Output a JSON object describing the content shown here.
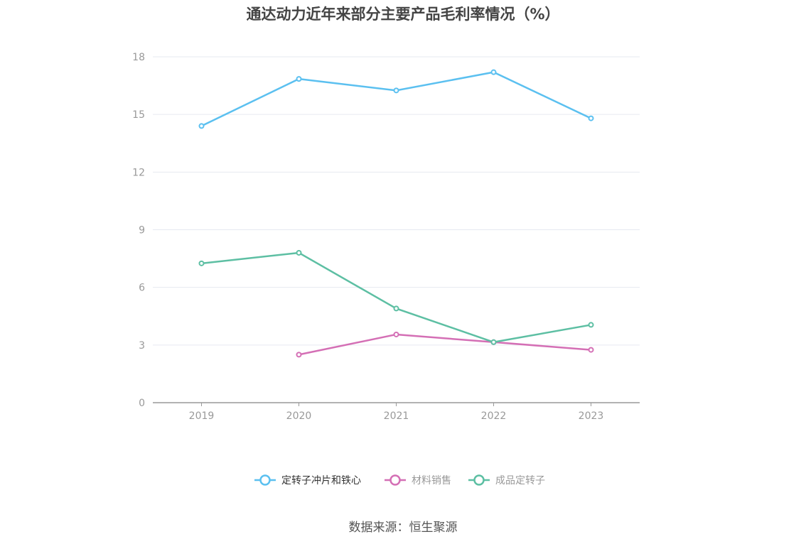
{
  "title": "通达动力近年来部分主要产品毛利率情况（%）",
  "source": "数据来源：恒生聚源",
  "chart_data": {
    "type": "line",
    "categories": [
      "2019",
      "2020",
      "2021",
      "2022",
      "2023"
    ],
    "series": [
      {
        "name": "定转子冲片和铁心",
        "values": [
          14.4,
          16.85,
          16.25,
          17.2,
          14.8
        ],
        "color": "#5bc0f0"
      },
      {
        "name": "材料销售",
        "values": [
          null,
          2.5,
          3.55,
          3.15,
          2.75
        ],
        "color": "#d46fb5"
      },
      {
        "name": "成品定转子",
        "values": [
          7.25,
          7.8,
          4.9,
          3.15,
          4.05
        ],
        "color": "#5dbfa3"
      }
    ],
    "yticks": [
      0,
      3,
      6,
      9,
      12,
      15,
      18
    ],
    "ylim": [
      0,
      18
    ],
    "grid": true,
    "legend_position": "bottom"
  }
}
